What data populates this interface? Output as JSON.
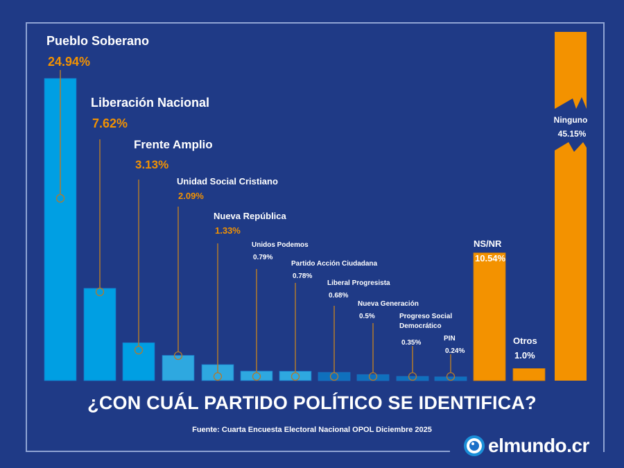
{
  "chart_data": {
    "type": "bar",
    "title": "¿CON CUÁL PARTIDO POLÍTICO SE IDENTIFICA?",
    "source": "Fuente: Cuarta Encuesta Electoral Nacional OPOL Diciembre 2025",
    "xlabel": "",
    "ylabel": "",
    "unit": "%",
    "broken_axis_bar": "Ninguno",
    "categories": [
      "Pueblo Soberano",
      "Liberación Nacional",
      "Frente Amplio",
      "Unidad Social Cristiano",
      "Nueva República",
      "Unidos Podemos",
      "Partido Acción Ciudadana",
      "Liberal Progresista",
      "Nueva Generación",
      "Progreso Social Democrático",
      "PIN",
      "NS/NR",
      "Otros",
      "Ninguno"
    ],
    "values": [
      24.94,
      7.62,
      3.13,
      2.09,
      1.33,
      0.79,
      0.78,
      0.68,
      0.5,
      0.35,
      0.24,
      10.54,
      1.0,
      45.15
    ],
    "value_labels": [
      "24.94%",
      "7.62%",
      "3.13%",
      "2.09%",
      "1.33%",
      "0.79%",
      "0.78%",
      "0.68%",
      "0.5%",
      "0.35%",
      "0.24%",
      "10.54%",
      "1.0%",
      "45.15%"
    ],
    "label_lines": [
      [
        "Pueblo Soberano"
      ],
      [
        "Liberación Nacional"
      ],
      [
        "Frente Amplio"
      ],
      [
        "Unidad Social Cristiano"
      ],
      [
        "Nueva República"
      ],
      [
        "Unidos Podemos"
      ],
      [
        "Partido Acción Ciudadana"
      ],
      [
        "Liberal Progresista"
      ],
      [
        "Nueva Generación"
      ],
      [
        "Progreso Social",
        "Democrático"
      ],
      [
        "PIN"
      ],
      [
        "NS/NR"
      ],
      [
        "Otros"
      ],
      [
        "Ninguno"
      ]
    ],
    "groups": [
      "party",
      "party",
      "party",
      "party",
      "party",
      "party",
      "party",
      "party",
      "party",
      "party",
      "party",
      "other",
      "other",
      "other"
    ],
    "colors": {
      "party_large": "#009fe3",
      "party_mid": "#2ea8e0",
      "party_small": "#0f70bd",
      "other": "#f39200",
      "leader_line": "#b27a2c",
      "value_orange": "#f39200",
      "value_white": "#ffffff",
      "background": "#1f3a86"
    },
    "ylim": [
      0,
      25
    ],
    "grid": false,
    "legend": "none"
  },
  "footer": {
    "brand": "elmundo.cr"
  }
}
